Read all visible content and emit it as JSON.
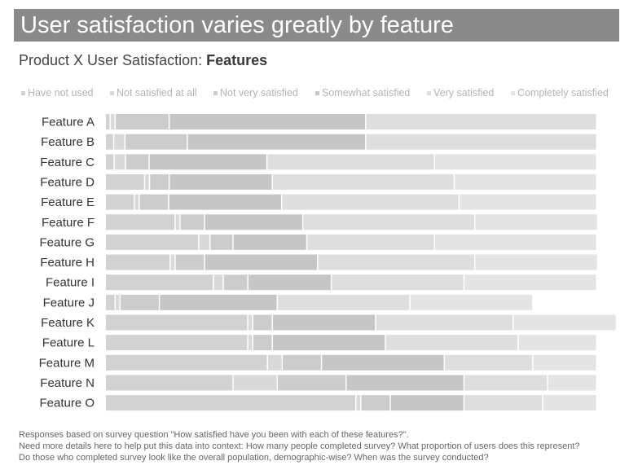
{
  "header": {
    "title": "User satisfaction varies greatly by feature",
    "subtitle_prefix": "Product X User Satisfaction: ",
    "subtitle_bold": "Features"
  },
  "footer": {
    "lines": [
      "Responses based on survey question \"How satisfied have you been with each of these features?\".",
      "Need more details here to help put this data into context: How many people completed survey? What proportion of users does this represent?",
      "Do those who completed survey look like the overall population, demographic-wise? When was the survey conducted?"
    ]
  },
  "chart_data": {
    "type": "bar",
    "orientation": "horizontal",
    "stacked": "100%",
    "legend_placement": "top",
    "grid": false,
    "title": "User satisfaction varies greatly by feature",
    "subtitle": "Product X User Satisfaction: Features",
    "categories": [
      "Feature A",
      "Feature B",
      "Feature C",
      "Feature D",
      "Feature E",
      "Feature F",
      "Feature G",
      "Feature H",
      "Feature I",
      "Feature J",
      "Feature K",
      "Feature L",
      "Feature M",
      "Feature N",
      "Feature O"
    ],
    "series": [
      {
        "name": "Have not used",
        "color": "#d2d2d2",
        "values": [
          1.0,
          1.7,
          1.8,
          8.0,
          5.9,
          14.2,
          19.0,
          13.2,
          22.0,
          2.0,
          29.0,
          29.0,
          33.0,
          26.0,
          51.0
        ]
      },
      {
        "name": "Not satisfied at all",
        "color": "#d9d9d9",
        "values": [
          1.0,
          2.3,
          2.3,
          1.0,
          1.0,
          1.0,
          2.3,
          1.0,
          2.0,
          1.0,
          1.0,
          1.0,
          3.0,
          9.0,
          1.0
        ]
      },
      {
        "name": "Not very satisfied",
        "color": "#cccccc",
        "values": [
          11.0,
          12.7,
          4.8,
          4.0,
          6.0,
          5.0,
          4.7,
          6.0,
          5.0,
          8.0,
          4.0,
          4.0,
          8.0,
          14.0,
          6.0
        ]
      },
      {
        "name": "Somewhat satisfied",
        "color": "#c6c6c6",
        "values": [
          40.0,
          36.3,
          24.0,
          21.0,
          23.0,
          20.0,
          15.0,
          23.0,
          17.0,
          24.0,
          21.0,
          23.0,
          25.0,
          24.0,
          15.0
        ]
      },
      {
        "name": "Very satisfied",
        "color": "#dedede",
        "values": [
          47.0,
          47.0,
          34.1,
          37.0,
          36.1,
          35.0,
          26.0,
          32.0,
          27.0,
          27.0,
          28.0,
          27.0,
          18.0,
          17.0,
          16.0
        ]
      },
      {
        "name": "Completely satisfied",
        "color": "#e4e4e4",
        "values": [
          0.0,
          0.0,
          33.0,
          29.0,
          28.0,
          25.0,
          33.0,
          25.0,
          27.0,
          25.0,
          21.0,
          16.0,
          13.0,
          10.0,
          11.0
        ]
      }
    ],
    "xlim": [
      0,
      100
    ]
  }
}
